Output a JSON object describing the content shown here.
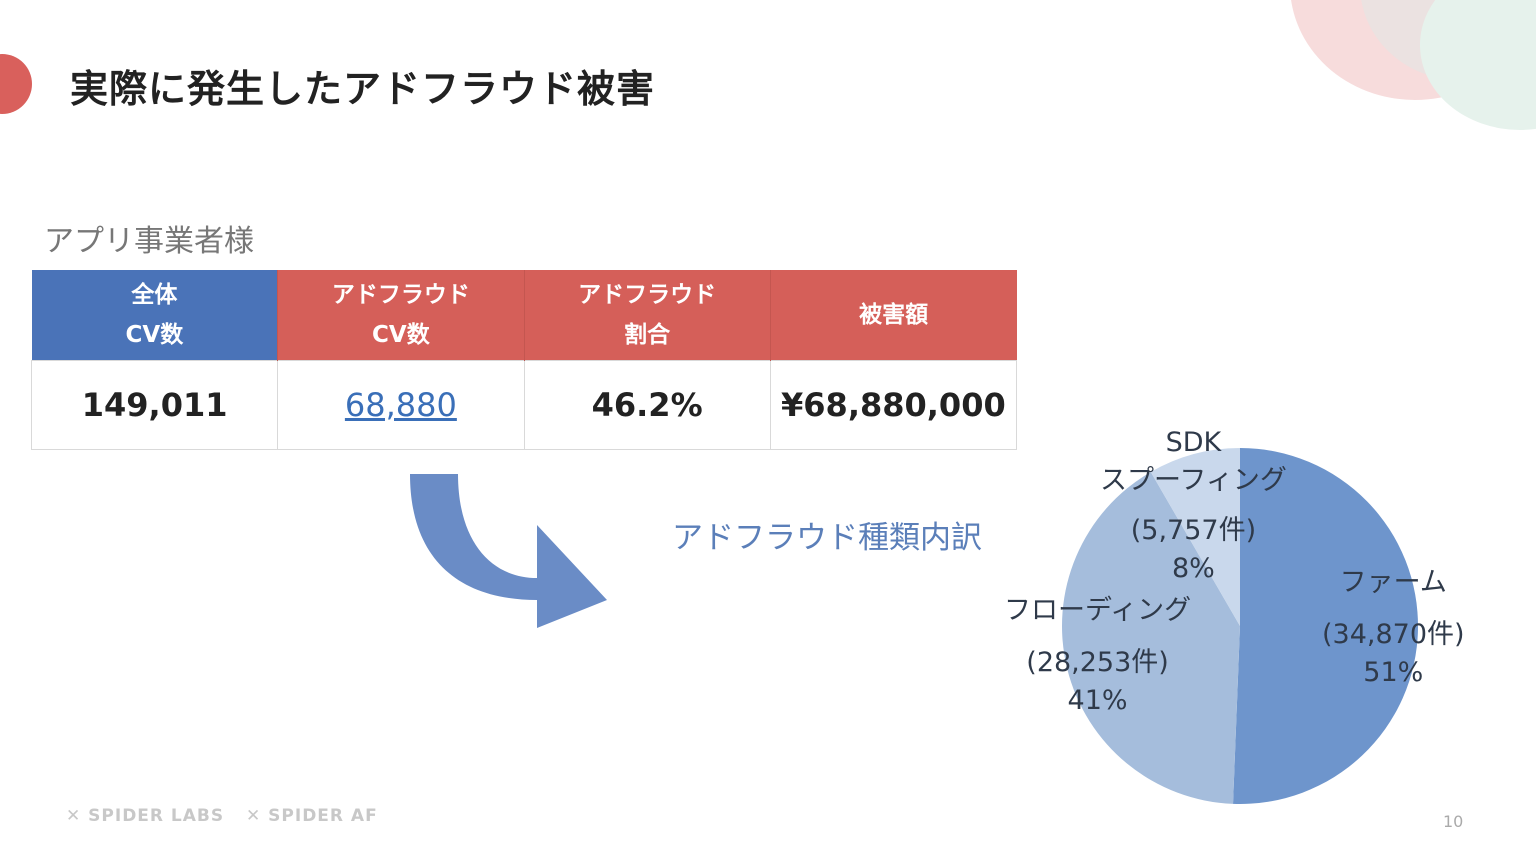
{
  "slide": {
    "title": "実際に発生したアドフラウド被害",
    "section_label": "アプリ事業者様",
    "table": {
      "headers": [
        {
          "line1": "全体",
          "line2": "CV数"
        },
        {
          "line1": "アドフラウド",
          "line2": "CV数"
        },
        {
          "line1": "アドフラウド",
          "line2": "割合"
        },
        {
          "line1": "被害額",
          "line2": ""
        }
      ],
      "values": [
        "149,011",
        "68,880",
        "46.2%",
        "¥68,880,000"
      ]
    },
    "breakdown_label": "アドフラウド種類内訳",
    "footer": {
      "logo1": "SPIDER LABS",
      "logo2": "SPIDER AF",
      "page_number": "10"
    },
    "colors": {
      "header_blue": "#4a73b8",
      "header_red": "#d55f59",
      "link_blue": "#3a6fb8",
      "pie_farm": "#6e95cc",
      "pie_flooding": "#a5bddc",
      "pie_sdk": "#c9d8ec"
    }
  },
  "chart_data": {
    "type": "pie",
    "title": "アドフラウド種類内訳",
    "slices": [
      {
        "label": "ファーム",
        "count": "(34,870件)",
        "value": 34870,
        "percent": "51%"
      },
      {
        "label": "フローディング",
        "count": "(28,253件)",
        "value": 28253,
        "percent": "41%"
      },
      {
        "label_line1": "SDK",
        "label": "スプーフィング",
        "count": "(5,757件)",
        "value": 5757,
        "percent": "8%"
      }
    ]
  }
}
